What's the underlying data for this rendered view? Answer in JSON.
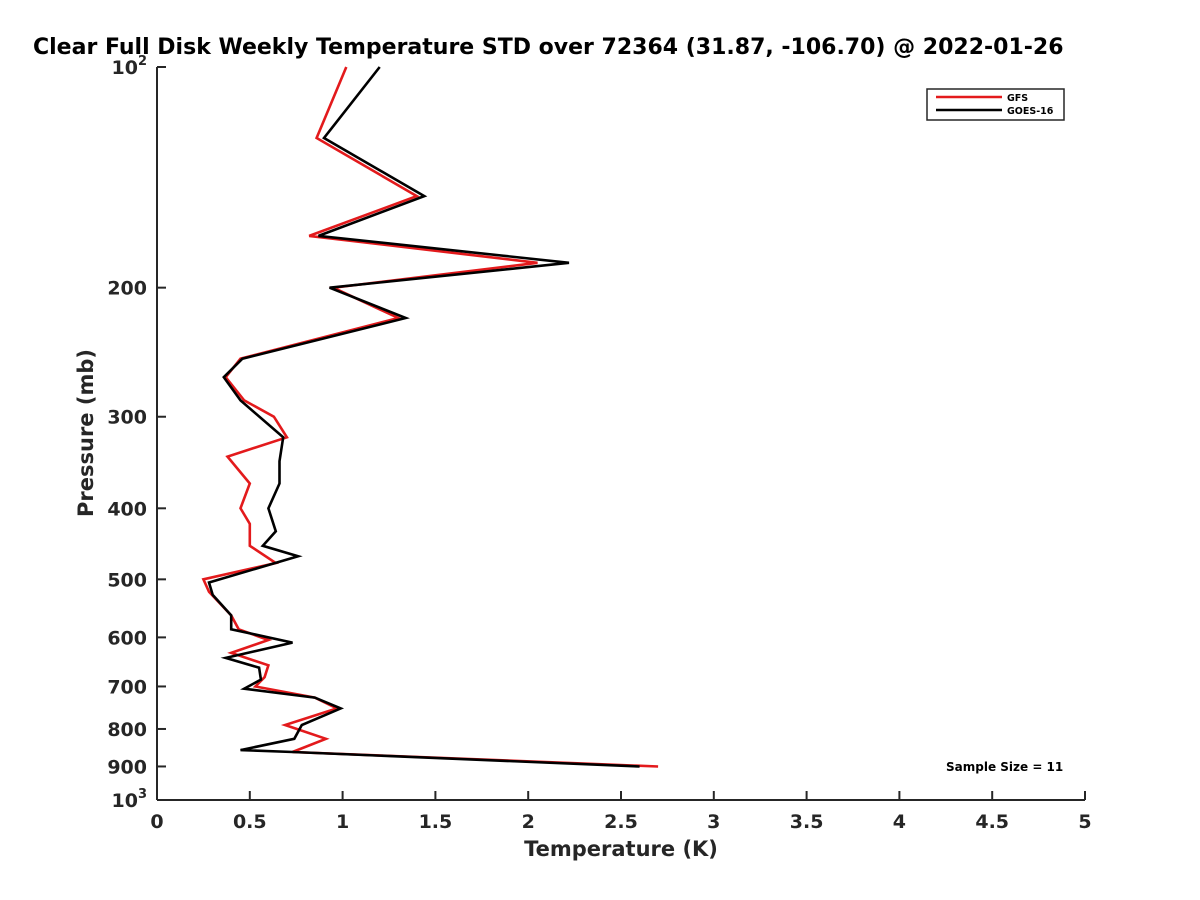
{
  "chart_data": {
    "type": "line",
    "title": "Clear Full Disk Weekly Temperature STD over 72364 (31.87, -106.70) @ 2022-01-26",
    "xlabel": "Temperature (K)",
    "ylabel": "Pressure (mb)",
    "xlim": [
      0,
      5
    ],
    "ylim": [
      100,
      1000
    ],
    "y_scale": "log",
    "y_reversed": true,
    "grid": false,
    "legend_position": "top-right",
    "x_ticks": [
      "0",
      "0.5",
      "1",
      "1.5",
      "2",
      "2.5",
      "3",
      "3.5",
      "4",
      "4.5",
      "5"
    ],
    "y_ticks": [
      {
        "value": 100,
        "base": "10",
        "exp": "2"
      },
      {
        "value": 200,
        "label": "200"
      },
      {
        "value": 300,
        "label": "300"
      },
      {
        "value": 400,
        "label": "400"
      },
      {
        "value": 500,
        "label": "500"
      },
      {
        "value": 600,
        "label": "600"
      },
      {
        "value": 700,
        "label": "700"
      },
      {
        "value": 800,
        "label": "800"
      },
      {
        "value": 900,
        "label": "900"
      },
      {
        "value": 1000,
        "base": "10",
        "exp": "3"
      }
    ],
    "series": [
      {
        "name": "GFS",
        "color": "#e31a1c",
        "points": [
          [
            1.02,
            100
          ],
          [
            0.86,
            125
          ],
          [
            1.4,
            150
          ],
          [
            0.82,
            170
          ],
          [
            2.05,
            185
          ],
          [
            0.95,
            200
          ],
          [
            1.3,
            220
          ],
          [
            0.45,
            250
          ],
          [
            0.37,
            265
          ],
          [
            0.47,
            285
          ],
          [
            0.63,
            300
          ],
          [
            0.7,
            320
          ],
          [
            0.38,
            340
          ],
          [
            0.5,
            370
          ],
          [
            0.45,
            400
          ],
          [
            0.5,
            420
          ],
          [
            0.5,
            450
          ],
          [
            0.64,
            475
          ],
          [
            0.25,
            500
          ],
          [
            0.28,
            520
          ],
          [
            0.4,
            560
          ],
          [
            0.44,
            585
          ],
          [
            0.6,
            605
          ],
          [
            0.4,
            630
          ],
          [
            0.6,
            655
          ],
          [
            0.58,
            680
          ],
          [
            0.53,
            700
          ],
          [
            0.85,
            725
          ],
          [
            0.97,
            750
          ],
          [
            0.69,
            790
          ],
          [
            0.91,
            825
          ],
          [
            0.73,
            860
          ],
          [
            2.7,
            900
          ]
        ]
      },
      {
        "name": "GOES-16",
        "color": "#000000",
        "points": [
          [
            1.2,
            100
          ],
          [
            0.9,
            125
          ],
          [
            1.44,
            150
          ],
          [
            0.87,
            170
          ],
          [
            2.22,
            185
          ],
          [
            0.93,
            200
          ],
          [
            1.34,
            220
          ],
          [
            0.46,
            250
          ],
          [
            0.36,
            265
          ],
          [
            0.45,
            285
          ],
          [
            0.68,
            320
          ],
          [
            0.66,
            345
          ],
          [
            0.66,
            370
          ],
          [
            0.6,
            400
          ],
          [
            0.64,
            430
          ],
          [
            0.57,
            450
          ],
          [
            0.76,
            465
          ],
          [
            0.28,
            505
          ],
          [
            0.3,
            525
          ],
          [
            0.4,
            560
          ],
          [
            0.4,
            585
          ],
          [
            0.73,
            610
          ],
          [
            0.37,
            640
          ],
          [
            0.55,
            660
          ],
          [
            0.56,
            685
          ],
          [
            0.47,
            705
          ],
          [
            0.85,
            725
          ],
          [
            0.99,
            750
          ],
          [
            0.78,
            790
          ],
          [
            0.74,
            825
          ],
          [
            0.45,
            855
          ],
          [
            0.73,
            860
          ],
          [
            2.6,
            900
          ]
        ]
      }
    ],
    "annotation": "Sample Size = 11"
  }
}
